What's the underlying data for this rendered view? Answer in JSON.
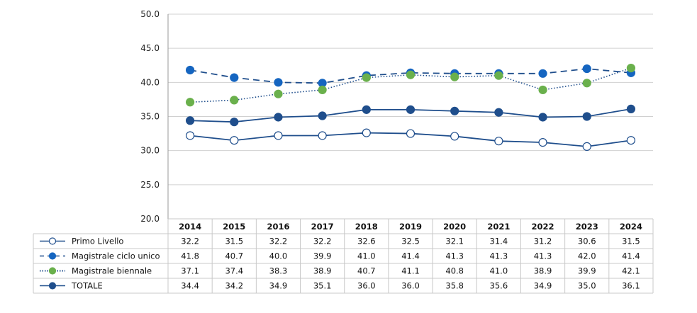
{
  "chart_data": {
    "type": "line",
    "title": "",
    "xlabel": "",
    "ylabel": "",
    "ylim": [
      20,
      50
    ],
    "yticks": [
      "20.0",
      "25.0",
      "30.0",
      "35.0",
      "40.0",
      "45.0",
      "50.0"
    ],
    "grid": true,
    "legend_placement": "bottom-table",
    "categories": [
      "2014",
      "2015",
      "2016",
      "2017",
      "2018",
      "2019",
      "2020",
      "2021",
      "2022",
      "2023",
      "2024"
    ],
    "series": [
      {
        "name": "Primo Livello",
        "values": [
          32.2,
          31.5,
          32.2,
          32.2,
          32.6,
          32.5,
          32.1,
          31.4,
          31.2,
          30.6,
          31.5
        ],
        "labels": [
          "32.2",
          "31.5",
          "32.2",
          "32.2",
          "32.6",
          "32.5",
          "32.1",
          "31.4",
          "31.2",
          "30.6",
          "31.5"
        ],
        "color": "#1f4e8c",
        "marker_fill": "#ffffff",
        "line_style": "solid"
      },
      {
        "name": "Magistrale ciclo unico",
        "values": [
          41.8,
          40.7,
          40.0,
          39.9,
          41.0,
          41.4,
          41.3,
          41.3,
          41.3,
          42.0,
          41.4
        ],
        "labels": [
          "41.8",
          "40.7",
          "40.0",
          "39.9",
          "41.0",
          "41.4",
          "41.3",
          "41.3",
          "41.3",
          "42.0",
          "41.4"
        ],
        "color": "#1f4e8c",
        "marker_fill": "#1565c0",
        "line_style": "dashed"
      },
      {
        "name": "Magistrale biennale",
        "values": [
          37.1,
          37.4,
          38.3,
          38.9,
          40.7,
          41.1,
          40.8,
          41.0,
          38.9,
          39.9,
          42.1
        ],
        "labels": [
          "37.1",
          "37.4",
          "38.3",
          "38.9",
          "40.7",
          "41.1",
          "40.8",
          "41.0",
          "38.9",
          "39.9",
          "42.1"
        ],
        "color": "#1f4e8c",
        "marker_fill": "#6ab04c",
        "line_style": "dotted"
      },
      {
        "name": "TOTALE",
        "values": [
          34.4,
          34.2,
          34.9,
          35.1,
          36.0,
          36.0,
          35.8,
          35.6,
          34.9,
          35.0,
          36.1
        ],
        "labels": [
          "34.4",
          "34.2",
          "34.9",
          "35.1",
          "36.0",
          "36.0",
          "35.8",
          "35.6",
          "34.9",
          "35.0",
          "36.1"
        ],
        "color": "#1f4e8c",
        "marker_fill": "#1f4e8c",
        "line_style": "solid"
      }
    ]
  }
}
